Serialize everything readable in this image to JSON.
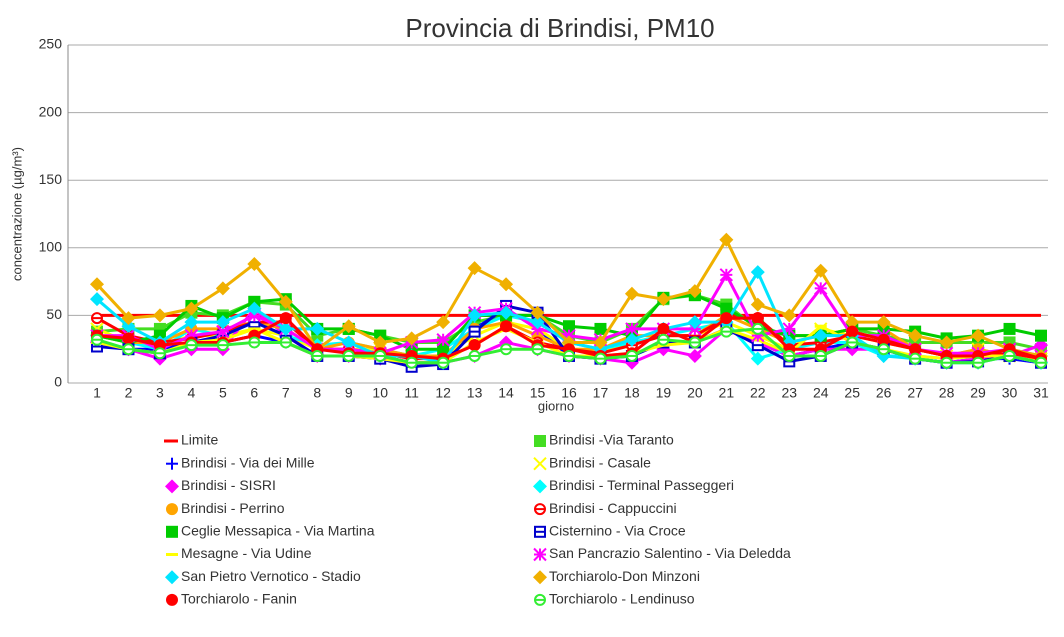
{
  "chart_data": {
    "type": "line",
    "title": "Provincia di Brindisi, PM10",
    "x_label": "giorno",
    "y_label": "concentrazione (µg/m³)",
    "categories": [
      "1",
      "2",
      "3",
      "4",
      "5",
      "6",
      "7",
      "8",
      "9",
      "10",
      "11",
      "12",
      "13",
      "14",
      "15",
      "16",
      "17",
      "18",
      "19",
      "20",
      "21",
      "22",
      "23",
      "24",
      "25",
      "26",
      "27",
      "28",
      "29",
      "30",
      "31"
    ],
    "ylim": [
      0,
      250
    ],
    "yticks": [
      0,
      50,
      100,
      150,
      200,
      250
    ],
    "grid": true,
    "series": [
      {
        "name": "Limite",
        "color": "#ff0000",
        "marker": "none",
        "values": [
          50,
          50,
          50,
          50,
          50,
          50,
          50,
          50,
          50,
          50,
          50,
          50,
          50,
          50,
          50,
          50,
          50,
          50,
          50,
          50,
          50,
          50,
          50,
          50,
          50,
          50,
          50,
          50,
          50,
          50,
          50
        ]
      },
      {
        "name": "Brindisi -Via Taranto",
        "color": "#44dd22",
        "marker": "square",
        "values": [
          38,
          40,
          40,
          52,
          50,
          60,
          58,
          35,
          40,
          35,
          30,
          30,
          45,
          50,
          50,
          35,
          30,
          40,
          62,
          65,
          58,
          40,
          35,
          35,
          40,
          35,
          30,
          30,
          30,
          30,
          25
        ]
      },
      {
        "name": "Brindisi - Via dei Mille",
        "color": "#0000ff",
        "marker": "plus",
        "values": [
          30,
          25,
          25,
          30,
          30,
          35,
          30,
          20,
          20,
          20,
          15,
          15,
          40,
          55,
          40,
          20,
          20,
          20,
          30,
          30,
          40,
          30,
          20,
          25,
          30,
          25,
          18,
          15,
          18,
          18,
          15
        ]
      },
      {
        "name": "Brindisi - Casale",
        "color": "#ffff00",
        "marker": "x",
        "values": [
          40,
          30,
          28,
          35,
          35,
          40,
          35,
          25,
          25,
          25,
          20,
          20,
          35,
          45,
          40,
          25,
          22,
          30,
          35,
          35,
          45,
          35,
          25,
          40,
          35,
          30,
          25,
          20,
          25,
          20,
          18
        ]
      },
      {
        "name": "Brindisi - SISRI",
        "color": "#ff00ff",
        "marker": "diamond",
        "values": [
          30,
          25,
          18,
          25,
          25,
          55,
          35,
          20,
          20,
          18,
          15,
          15,
          20,
          30,
          25,
          20,
          18,
          15,
          25,
          20,
          40,
          30,
          20,
          25,
          25,
          25,
          18,
          15,
          18,
          20,
          28
        ]
      },
      {
        "name": " Brindisi - Terminal Passeggeri",
        "color": "#00ffff",
        "marker": "diamond",
        "values": [
          35,
          30,
          25,
          40,
          35,
          45,
          35,
          28,
          30,
          25,
          20,
          25,
          40,
          50,
          45,
          30,
          25,
          30,
          35,
          40,
          45,
          18,
          25,
          30,
          30,
          20,
          20,
          18,
          20,
          20,
          15
        ]
      },
      {
        "name": "Brindisi - Perrino",
        "color": "#ffa500",
        "marker": "circle",
        "values": [
          35,
          30,
          30,
          40,
          40,
          45,
          40,
          25,
          30,
          25,
          20,
          20,
          40,
          45,
          35,
          25,
          25,
          35,
          35,
          35,
          50,
          40,
          30,
          35,
          40,
          40,
          25,
          20,
          25,
          20,
          15
        ]
      },
      {
        "name": "Brindisi - Cappuccini",
        "color": "#ff0000",
        "marker": "ocircle",
        "values": [
          48,
          35,
          30,
          33,
          38,
          45,
          45,
          25,
          25,
          22,
          18,
          18,
          28,
          42,
          30,
          25,
          22,
          28,
          35,
          35,
          48,
          48,
          28,
          30,
          35,
          30,
          25,
          20,
          20,
          22,
          18
        ]
      },
      {
        "name": "Ceglie Messapica - Via Martina",
        "color": "#00cc00",
        "marker": "square",
        "values": [
          35,
          30,
          35,
          57,
          48,
          60,
          62,
          40,
          40,
          35,
          25,
          25,
          50,
          50,
          50,
          42,
          40,
          35,
          63,
          65,
          55,
          42,
          35,
          35,
          40,
          40,
          38,
          33,
          35,
          40,
          35
        ]
      },
      {
        "name": "Cisternino - Via Croce",
        "color": "#0000cc",
        "marker": "osquare",
        "values": [
          27,
          25,
          22,
          30,
          35,
          45,
          35,
          20,
          20,
          18,
          12,
          14,
          38,
          57,
          52,
          20,
          18,
          20,
          30,
          30,
          40,
          28,
          16,
          20,
          30,
          25,
          18,
          15,
          16,
          20,
          15
        ]
      },
      {
        "name": "Mesagne - Via Udine",
        "color": "#ffff00",
        "marker": "dash",
        "values": [
          30,
          25,
          22,
          30,
          32,
          40,
          30,
          20,
          20,
          18,
          15,
          15,
          30,
          40,
          30,
          20,
          20,
          22,
          28,
          30,
          40,
          32,
          22,
          42,
          30,
          25,
          20,
          18,
          20,
          20,
          15
        ]
      },
      {
        "name": "San Pancrazio Salentino - Via Deledda",
        "color": "#ff00ff",
        "marker": "star",
        "values": [
          35,
          35,
          25,
          35,
          38,
          50,
          40,
          25,
          25,
          22,
          30,
          32,
          52,
          55,
          40,
          35,
          32,
          40,
          40,
          40,
          80,
          35,
          40,
          70,
          35,
          35,
          25,
          22,
          22,
          25,
          20
        ]
      },
      {
        "name": "San Pietro Vernotico - Stadio",
        "color": "#00e5ff",
        "marker": "diamond",
        "values": [
          62,
          42,
          30,
          45,
          45,
          55,
          40,
          40,
          30,
          20,
          20,
          15,
          50,
          52,
          45,
          30,
          25,
          32,
          40,
          45,
          45,
          82,
          30,
          35,
          35,
          20,
          18,
          15,
          15,
          20,
          15
        ]
      },
      {
        "name": "Torchiarolo-Don Minzoni",
        "color": "#f0b000",
        "marker": "diamond",
        "values": [
          73,
          48,
          50,
          55,
          70,
          88,
          60,
          25,
          42,
          30,
          33,
          45,
          85,
          73,
          52,
          30,
          30,
          66,
          62,
          68,
          106,
          58,
          50,
          83,
          45,
          45,
          35,
          30,
          35,
          25,
          20
        ]
      },
      {
        "name": "Torchiarolo - Fanin",
        "color": "#ff0000",
        "marker": "circle",
        "values": [
          35,
          33,
          28,
          30,
          30,
          35,
          48,
          25,
          22,
          22,
          20,
          18,
          28,
          42,
          28,
          25,
          20,
          22,
          40,
          30,
          48,
          48,
          25,
          25,
          38,
          32,
          25,
          20,
          20,
          25,
          18
        ]
      },
      {
        "name": "Torchiarolo - Lendinuso",
        "color": "#33ee33",
        "marker": "ocircle",
        "values": [
          32,
          25,
          22,
          28,
          28,
          30,
          30,
          20,
          20,
          20,
          15,
          15,
          20,
          25,
          25,
          20,
          18,
          20,
          32,
          30,
          38,
          40,
          20,
          20,
          30,
          25,
          18,
          15,
          15,
          20,
          15
        ]
      }
    ]
  }
}
